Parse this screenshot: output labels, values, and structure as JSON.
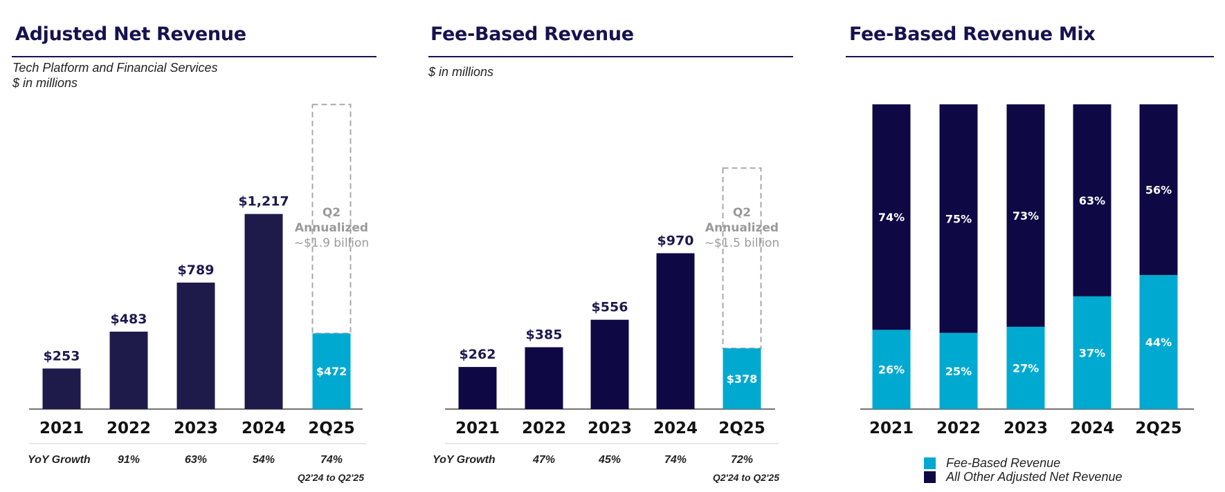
{
  "colors": {
    "navy": "#1e1a4a",
    "navy_dark": "#0e0845",
    "cyan": "#00a9d0",
    "dashed": "#a8a8a8",
    "title": "#16124f"
  },
  "panels": {
    "adjusted": {
      "title": "Adjusted Net Revenue",
      "subtitle_line1": "Tech Platform and Financial Services",
      "subtitle_line2": "$ in millions",
      "growth_label": "YoY Growth",
      "growth_note": "Q2'24 to Q2'25",
      "annualized": {
        "line1": "Q2",
        "line2": "Annualized",
        "line3": "~$1.9 billion"
      }
    },
    "fee": {
      "title": "Fee-Based Revenue",
      "subtitle_line1": "$ in millions",
      "growth_label": "YoY Growth",
      "growth_note": "Q2'24 to Q2'25",
      "annualized": {
        "line1": "Q2",
        "line2": "Annualized",
        "line3": "~$1.5 billion"
      }
    },
    "mix": {
      "title": "Fee-Based Revenue Mix",
      "legend": [
        "Fee-Based Revenue",
        "All Other Adjusted Net Revenue"
      ]
    }
  },
  "chart_data": [
    {
      "type": "bar",
      "title": "Adjusted Net Revenue",
      "ylabel": "$ in millions",
      "categories": [
        "2021",
        "2022",
        "2023",
        "2024",
        "2Q25"
      ],
      "values": [
        253,
        483,
        789,
        1217,
        472
      ],
      "value_labels": [
        "$253",
        "$483",
        "$789",
        "$1,217",
        "$472"
      ],
      "annualized_value": 1900,
      "yoy_growth": [
        "91%",
        "63%",
        "54%",
        "74%"
      ],
      "ylim": [
        0,
        1900
      ]
    },
    {
      "type": "bar",
      "title": "Fee-Based Revenue",
      "ylabel": "$ in millions",
      "categories": [
        "2021",
        "2022",
        "2023",
        "2024",
        "2Q25"
      ],
      "values": [
        262,
        385,
        556,
        970,
        378
      ],
      "value_labels": [
        "$262",
        "$385",
        "$556",
        "$970",
        "$378"
      ],
      "annualized_value": 1500,
      "yoy_growth": [
        "47%",
        "45%",
        "74%",
        "72%"
      ],
      "ylim": [
        0,
        1800
      ]
    },
    {
      "type": "bar",
      "stacked": true,
      "title": "Fee-Based Revenue Mix",
      "categories": [
        "2021",
        "2022",
        "2023",
        "2024",
        "2Q25"
      ],
      "series": [
        {
          "name": "Fee-Based Revenue",
          "values": [
            26,
            25,
            27,
            37,
            44
          ],
          "labels": [
            "26%",
            "25%",
            "27%",
            "37%",
            "44%"
          ]
        },
        {
          "name": "All Other Adjusted Net Revenue",
          "values": [
            74,
            75,
            73,
            63,
            56
          ],
          "labels": [
            "74%",
            "75%",
            "73%",
            "63%",
            "56%"
          ]
        }
      ],
      "ylim": [
        0,
        100
      ]
    }
  ]
}
